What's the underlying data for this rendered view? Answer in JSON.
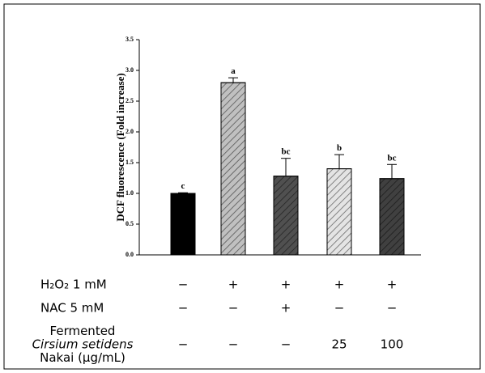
{
  "chart_data": {
    "type": "bar",
    "y_label": "DCF fluorescence  (Fold increase)",
    "values": [
      1.0,
      2.8,
      1.28,
      1.4,
      1.24
    ],
    "errors": [
      0.01,
      0.08,
      0.29,
      0.23,
      0.23
    ],
    "letters": [
      "c",
      "a",
      "bc",
      "b",
      "bc"
    ],
    "colors": [
      "#000000",
      "#c0c0c0",
      "#505050",
      "#e4e4e4",
      "#404040"
    ],
    "ylim": [
      0,
      3.5
    ],
    "yticks": [
      {
        "value": 0,
        "label": "0.0"
      },
      {
        "value": 0.5,
        "label": "0.5"
      },
      {
        "value": 1,
        "label": "1.0"
      },
      {
        "value": 1.5,
        "label": "1.5"
      },
      {
        "value": 2,
        "label": "2.0"
      },
      {
        "value": 2.5,
        "label": "2.5"
      },
      {
        "value": 3,
        "label": "3.0"
      },
      {
        "value": 3.5,
        "label": "3.5"
      }
    ]
  },
  "table": {
    "rows": [
      {
        "label": [
          "H₂O₂ 1 mM"
        ],
        "cells": [
          "−",
          "+",
          "+",
          "+",
          "+"
        ]
      },
      {
        "label": [
          "NAC 5 mM"
        ],
        "cells": [
          "−",
          "−",
          "+",
          "−",
          "−"
        ]
      },
      {
        "label": [
          "Fermented",
          "Cirsium setidens",
          "Nakai (μg/mL)"
        ],
        "cells": [
          "−",
          "−",
          "−",
          "25",
          "100"
        ]
      }
    ]
  }
}
